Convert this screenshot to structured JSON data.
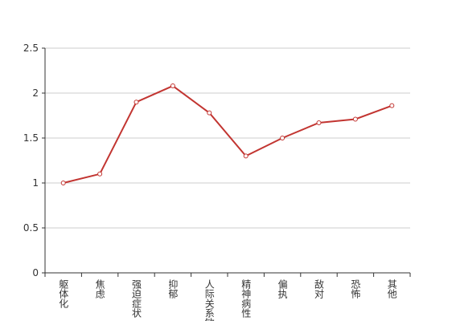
{
  "chart_data": {
    "type": "line",
    "categories": [
      "躯体化",
      "焦虑",
      "强迫症状",
      "抑郁",
      "人际关系敏感",
      "精神病性",
      "偏执",
      "敌对",
      "恐怖",
      "其他"
    ],
    "series": [
      {
        "name": "",
        "color": "#c23531",
        "values": [
          1.0,
          1.1,
          1.9,
          2.08,
          1.78,
          1.3,
          1.5,
          1.67,
          1.71,
          1.86
        ]
      }
    ],
    "ylim": [
      0,
      2.5
    ],
    "yticks": [
      0,
      0.5,
      1,
      1.5,
      2,
      2.5
    ],
    "grid": true
  }
}
